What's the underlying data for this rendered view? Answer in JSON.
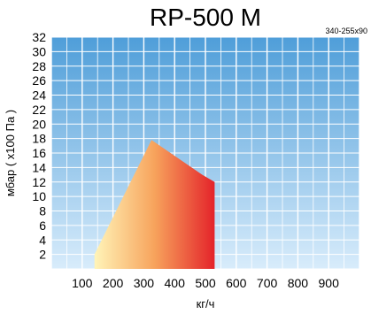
{
  "chart_data": {
    "type": "area",
    "title": "RP-500 M",
    "subtitle": "340-255x90",
    "xlabel": "кг/ч",
    "ylabel": "мбар ( x100 Па )",
    "xlim": [
      0,
      1000
    ],
    "ylim": [
      0,
      32
    ],
    "x_ticks": [
      "100",
      "200",
      "300",
      "400",
      "500",
      "600",
      "700",
      "800",
      "900"
    ],
    "y_ticks": [
      "2",
      "4",
      "6",
      "8",
      "10",
      "12",
      "14",
      "16",
      "18",
      "20",
      "22",
      "24",
      "26",
      "28",
      "30",
      "32"
    ],
    "grid": true,
    "series": [
      {
        "x": [
          140,
          140,
          325,
          490,
          530,
          530
        ],
        "y": [
          0,
          2,
          17.8,
          13,
          12,
          0
        ]
      }
    ],
    "colors": {
      "background_top": "#4f9ed9",
      "background_bottom": "#d8ecfb",
      "grid": "#ffffff",
      "fill_light": "#fff4b8",
      "fill_mid": "#f7a35c",
      "fill_dark": "#e4232a"
    }
  }
}
